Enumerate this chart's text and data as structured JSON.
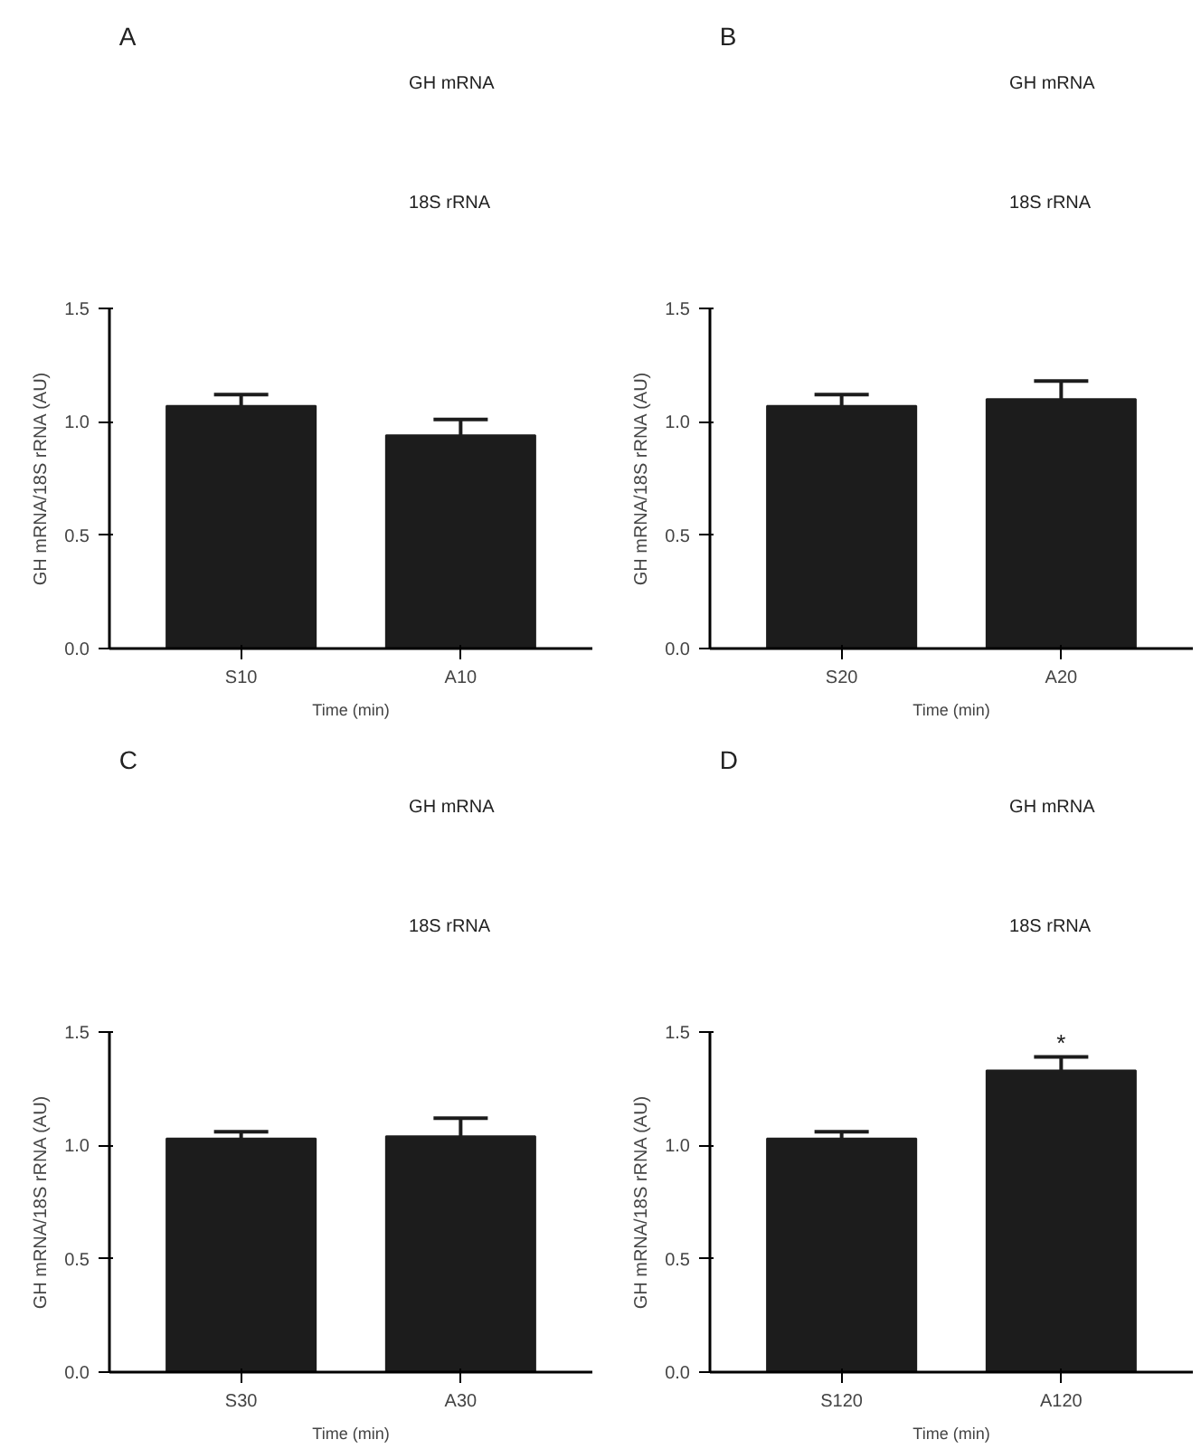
{
  "chart_data": [
    {
      "type": "bar",
      "title": "A",
      "annotations": [
        "GH mRNA",
        "18S rRNA"
      ],
      "categories": [
        "S10",
        "A10"
      ],
      "values": [
        1.07,
        0.94
      ],
      "errors": [
        0.05,
        0.07
      ],
      "color": "#1c1c1c",
      "xlabel": "Time (min)",
      "ylabel": "GH mRNA/18S rRNA (AU)",
      "ylim": [
        0,
        1.5
      ],
      "yticks": [
        {
          "value": 0,
          "label": "0.0"
        },
        {
          "value": 0.5,
          "label": "0.5"
        },
        {
          "value": 1,
          "label": "1.0"
        },
        {
          "value": 1.5,
          "label": "1.5"
        }
      ],
      "grid": false
    },
    {
      "type": "bar",
      "title": "B",
      "annotations": [
        "GH mRNA",
        "18S rRNA"
      ],
      "categories": [
        "S20",
        "A20"
      ],
      "values": [
        1.07,
        1.1
      ],
      "errors": [
        0.05,
        0.08
      ],
      "color": "#1c1c1c",
      "xlabel": "Time (min)",
      "ylabel": "GH mRNA/18S rRNA (AU)",
      "ylim": [
        0,
        1.5
      ],
      "yticks": [
        {
          "value": 0,
          "label": "0.0"
        },
        {
          "value": 0.5,
          "label": "0.5"
        },
        {
          "value": 1,
          "label": "1.0"
        },
        {
          "value": 1.5,
          "label": "1.5"
        }
      ],
      "grid": false
    },
    {
      "type": "bar",
      "title": "C",
      "annotations": [
        "GH mRNA",
        "18S rRNA"
      ],
      "categories": [
        "S30",
        "A30"
      ],
      "values": [
        1.03,
        1.04
      ],
      "errors": [
        0.03,
        0.08
      ],
      "color": "#1c1c1c",
      "xlabel": "Time (min)",
      "ylabel": "GH mRNA/18S rRNA (AU)",
      "ylim": [
        0,
        1.5
      ],
      "yticks": [
        {
          "value": 0,
          "label": "0.0"
        },
        {
          "value": 0.5,
          "label": "0.5"
        },
        {
          "value": 1,
          "label": "1.0"
        },
        {
          "value": 1.5,
          "label": "1.5"
        }
      ],
      "grid": false
    },
    {
      "type": "bar",
      "title": "D",
      "annotations": [
        "GH mRNA",
        "18S rRNA",
        "*"
      ],
      "categories": [
        "S120",
        "A120"
      ],
      "values": [
        1.03,
        1.33
      ],
      "errors": [
        0.03,
        0.06
      ],
      "color": "#1c1c1c",
      "xlabel": "Time (min)",
      "ylabel": "GH mRNA/18S rRNA (AU)",
      "ylim": [
        0,
        1.5
      ],
      "yticks": [
        {
          "value": 0,
          "label": "0.0"
        },
        {
          "value": 0.5,
          "label": "0.5"
        },
        {
          "value": 1,
          "label": "1.0"
        },
        {
          "value": 1.5,
          "label": "1.5"
        }
      ],
      "grid": false
    }
  ]
}
